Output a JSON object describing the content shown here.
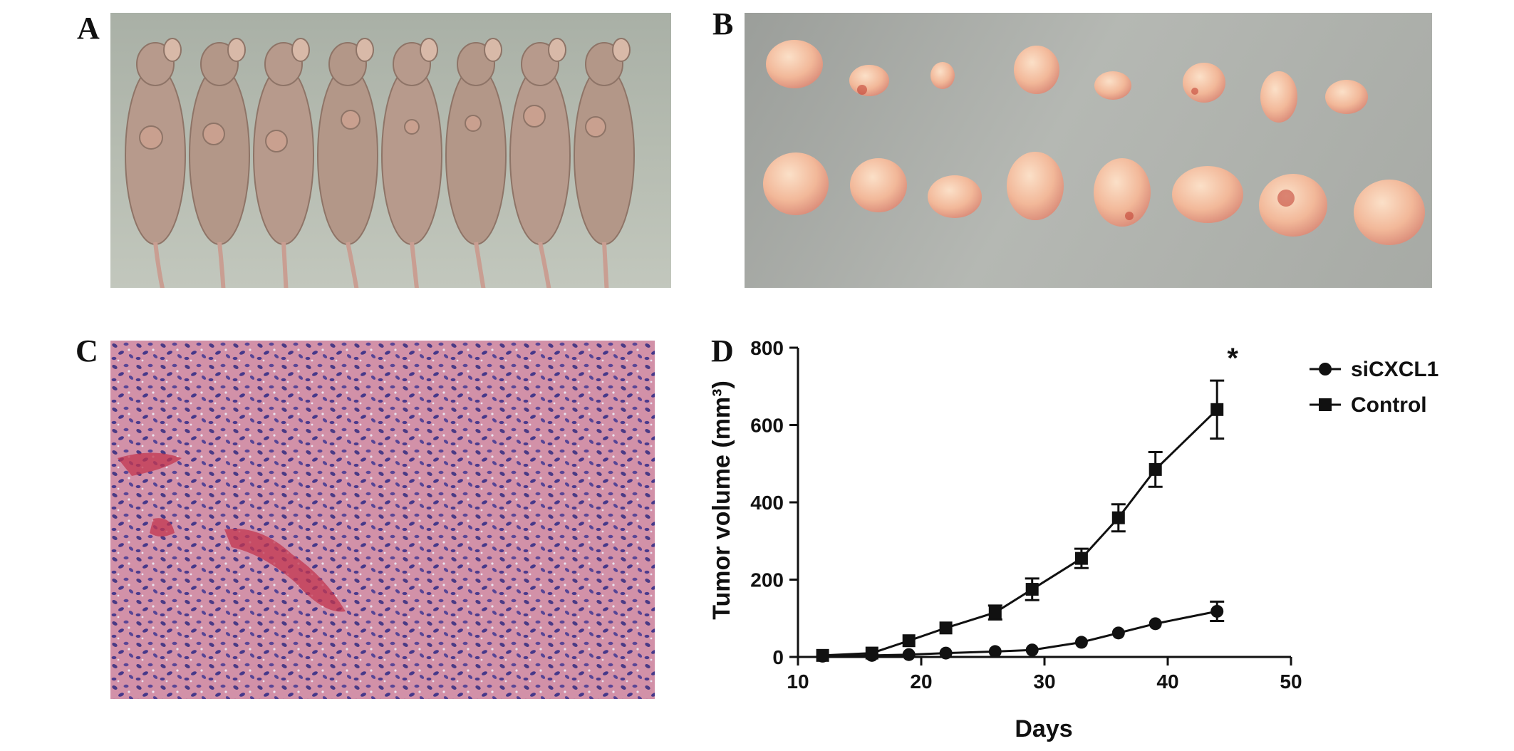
{
  "panels": {
    "a": {
      "letter": "A",
      "photo": "nude-mice-with-subcutaneous-tumors"
    },
    "b": {
      "letter": "B",
      "photo": "excised-tumors-two-rows"
    },
    "c": {
      "letter": "C",
      "photo": "he-stained-tumor-section"
    },
    "d": {
      "letter": "D"
    }
  },
  "chart_data": {
    "type": "line",
    "title": "",
    "xlabel": "Days",
    "ylabel": "Tumor volume (mm³)",
    "xlim": [
      10,
      50
    ],
    "ylim": [
      0,
      800
    ],
    "xticks": [
      10,
      20,
      30,
      40,
      50
    ],
    "yticks": [
      0,
      200,
      400,
      600,
      800
    ],
    "grid": false,
    "legend_position": "top-right",
    "significance_marker": "*",
    "series": [
      {
        "name": "siCXCL1",
        "marker": "circle",
        "color": "#111111",
        "x": [
          12,
          16,
          19,
          22,
          26,
          29,
          33,
          36,
          39,
          44
        ],
        "y": [
          2,
          4,
          6,
          10,
          14,
          18,
          38,
          62,
          86,
          118
        ],
        "err": [
          0,
          0,
          0,
          0,
          0,
          0,
          0,
          0,
          0,
          25
        ]
      },
      {
        "name": "Control",
        "marker": "square",
        "color": "#111111",
        "x": [
          12,
          16,
          19,
          22,
          26,
          29,
          33,
          36,
          39,
          44
        ],
        "y": [
          4,
          10,
          42,
          75,
          115,
          175,
          255,
          360,
          485,
          640
        ],
        "err": [
          0,
          0,
          0,
          0,
          18,
          28,
          25,
          35,
          45,
          75
        ]
      }
    ]
  }
}
